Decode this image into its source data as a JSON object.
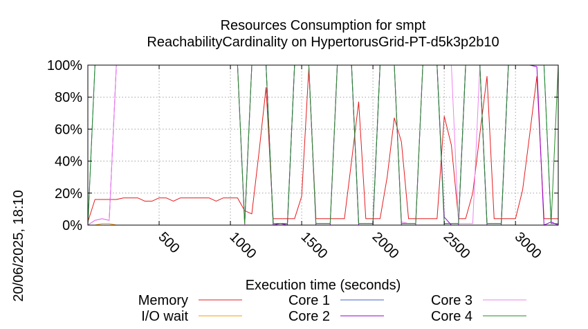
{
  "chart_data": {
    "type": "line",
    "title": "Resources Consumption for smpt",
    "subtitle": "ReachabilityCardinality on HypertorusGrid-PT-d5k3p2b10",
    "xlabel": "Execution time (seconds)",
    "ylabel": "",
    "side_label": "20/06/2025, 18:10",
    "xlim": [
      0,
      3300
    ],
    "ylim": [
      0,
      100
    ],
    "x_ticks": [
      500,
      1000,
      1500,
      2000,
      2500,
      3000
    ],
    "x_tick_labels": [
      "500",
      "1000",
      "1500",
      "2000",
      "2500",
      "3000"
    ],
    "y_ticks": [
      0,
      20,
      40,
      60,
      80,
      100
    ],
    "y_tick_labels": [
      "0%",
      "20%",
      "40%",
      "60%",
      "80%",
      "100%"
    ],
    "grid": true,
    "legend_position": "bottom",
    "series": [
      {
        "name": "Memory",
        "color": "#e41a1c",
        "x": [
          0,
          50,
          100,
          150,
          200,
          250,
          300,
          350,
          400,
          450,
          500,
          550,
          600,
          650,
          700,
          750,
          800,
          850,
          900,
          950,
          1000,
          1050,
          1100,
          1150,
          1200,
          1250,
          1300,
          1350,
          1400,
          1450,
          1500,
          1550,
          1600,
          1650,
          1700,
          1750,
          1800,
          1850,
          1900,
          1950,
          2000,
          2050,
          2100,
          2150,
          2200,
          2250,
          2300,
          2350,
          2400,
          2450,
          2500,
          2550,
          2600,
          2650,
          2700,
          2750,
          2800,
          2850,
          2900,
          2950,
          3000,
          3050,
          3100,
          3150,
          3200,
          3250,
          3300
        ],
        "y": [
          2,
          16,
          16,
          16,
          16,
          17,
          17,
          17,
          15,
          15,
          17,
          17,
          15,
          17,
          17,
          17,
          17,
          17,
          15,
          17,
          17,
          17,
          9,
          7,
          45,
          86,
          4,
          4,
          4,
          4,
          18,
          98,
          4,
          4,
          4,
          4,
          4,
          40,
          77,
          4,
          4,
          4,
          30,
          67,
          52,
          4,
          4,
          4,
          4,
          4,
          68,
          50,
          4,
          4,
          20,
          57,
          93,
          4,
          4,
          4,
          4,
          22,
          57,
          93,
          4,
          4,
          4
        ]
      },
      {
        "name": "I/O wait",
        "color": "#ff9900",
        "x": [
          0,
          50,
          100,
          150,
          200,
          250,
          300,
          400,
          600,
          800,
          1000,
          1200,
          1400,
          1600,
          1800,
          2000,
          2200,
          2400,
          2600,
          2800,
          3000,
          3200,
          3300
        ],
        "y": [
          0,
          0,
          1,
          1,
          0,
          0,
          0,
          0,
          0,
          0,
          0,
          0,
          0,
          0,
          0,
          0,
          0,
          0,
          0,
          0,
          0,
          0,
          0
        ]
      },
      {
        "name": "Core 1",
        "color": "#4060c8",
        "x": [
          0,
          50,
          1050,
          1100,
          1150,
          1200,
          1250,
          1300,
          1400,
          1450,
          1500,
          1550,
          1600,
          1700,
          1750,
          1800,
          1850,
          1900,
          2000,
          2050,
          2100,
          2150,
          2200,
          2300,
          2350,
          2400,
          2450,
          2500,
          2600,
          2650,
          2700,
          2750,
          2800,
          2900,
          2950,
          3000,
          3050,
          3100,
          3200,
          3250,
          3300
        ],
        "y": [
          0,
          100,
          100,
          1,
          100,
          100,
          100,
          1,
          1,
          100,
          100,
          100,
          1,
          1,
          100,
          100,
          100,
          1,
          1,
          100,
          100,
          100,
          1,
          1,
          100,
          100,
          100,
          1,
          1,
          100,
          100,
          100,
          1,
          1,
          100,
          100,
          100,
          100,
          100,
          1,
          1
        ]
      },
      {
        "name": "Core 2",
        "color": "#9400d3",
        "x": [
          0,
          50,
          100,
          150,
          200,
          1050,
          1100,
          1150,
          1200,
          1250,
          1300,
          1350,
          1400,
          1450,
          1500,
          1550,
          1600,
          1650,
          1700,
          1750,
          1800,
          1850,
          1900,
          1950,
          2000,
          2050,
          2100,
          2150,
          2200,
          2250,
          2300,
          2350,
          2400,
          2450,
          2500,
          2550,
          2600,
          2650,
          2700,
          2750,
          2800,
          2850,
          2900,
          2950,
          3000,
          3050,
          3100,
          3150,
          3200,
          3250,
          3300
        ],
        "y": [
          0,
          3,
          4,
          3,
          100,
          100,
          0,
          100,
          100,
          100,
          0,
          1,
          0,
          100,
          100,
          100,
          0,
          0,
          0,
          100,
          100,
          100,
          0,
          0,
          0,
          100,
          100,
          100,
          0,
          0,
          0,
          100,
          100,
          100,
          5,
          0,
          0,
          100,
          100,
          100,
          0,
          0,
          0,
          100,
          100,
          100,
          100,
          99,
          0,
          2,
          0
        ]
      },
      {
        "name": "Core 3",
        "color": "#ee82ee",
        "x": [
          0,
          50,
          100,
          150,
          200,
          1050,
          1100,
          1150,
          1200,
          1250,
          1300,
          1350,
          1400,
          1450,
          1500,
          1550,
          1600,
          1650,
          1700,
          1750,
          1800,
          1850,
          1900,
          1950,
          2000,
          2050,
          2100,
          2150,
          2200,
          2250,
          2300,
          2350,
          2400,
          2450,
          2500,
          2550,
          2600,
          2650,
          2700,
          2750,
          2800,
          2850,
          2900,
          2950,
          3000,
          3050,
          3100,
          3150,
          3200,
          3250,
          3300
        ],
        "y": [
          0,
          3,
          4,
          3,
          100,
          100,
          0,
          100,
          100,
          100,
          100,
          100,
          100,
          100,
          100,
          100,
          1,
          1,
          1,
          100,
          100,
          100,
          100,
          100,
          100,
          100,
          100,
          100,
          2,
          1,
          1,
          100,
          100,
          100,
          100,
          100,
          1,
          1,
          1,
          100,
          100,
          100,
          100,
          100,
          100,
          100,
          100,
          100,
          100,
          100,
          100
        ]
      },
      {
        "name": "Core 4",
        "color": "#228b22",
        "x": [
          0,
          50,
          1050,
          1100,
          1150,
          1200,
          1250,
          1300,
          1400,
          1450,
          1500,
          1550,
          1600,
          1700,
          1750,
          1800,
          1850,
          1900,
          2000,
          2050,
          2100,
          2150,
          2200,
          2300,
          2350,
          2400,
          2450,
          2500,
          2600,
          2650,
          2700,
          2750,
          2800,
          2900,
          2950,
          3000,
          3050,
          3100,
          3200,
          3250,
          3300
        ],
        "y": [
          0,
          100,
          100,
          1,
          100,
          100,
          100,
          1,
          1,
          100,
          100,
          100,
          1,
          1,
          100,
          100,
          100,
          1,
          1,
          100,
          100,
          100,
          1,
          1,
          100,
          100,
          100,
          1,
          1,
          100,
          100,
          100,
          1,
          1,
          100,
          100,
          100,
          100,
          100,
          1,
          100
        ]
      }
    ]
  }
}
